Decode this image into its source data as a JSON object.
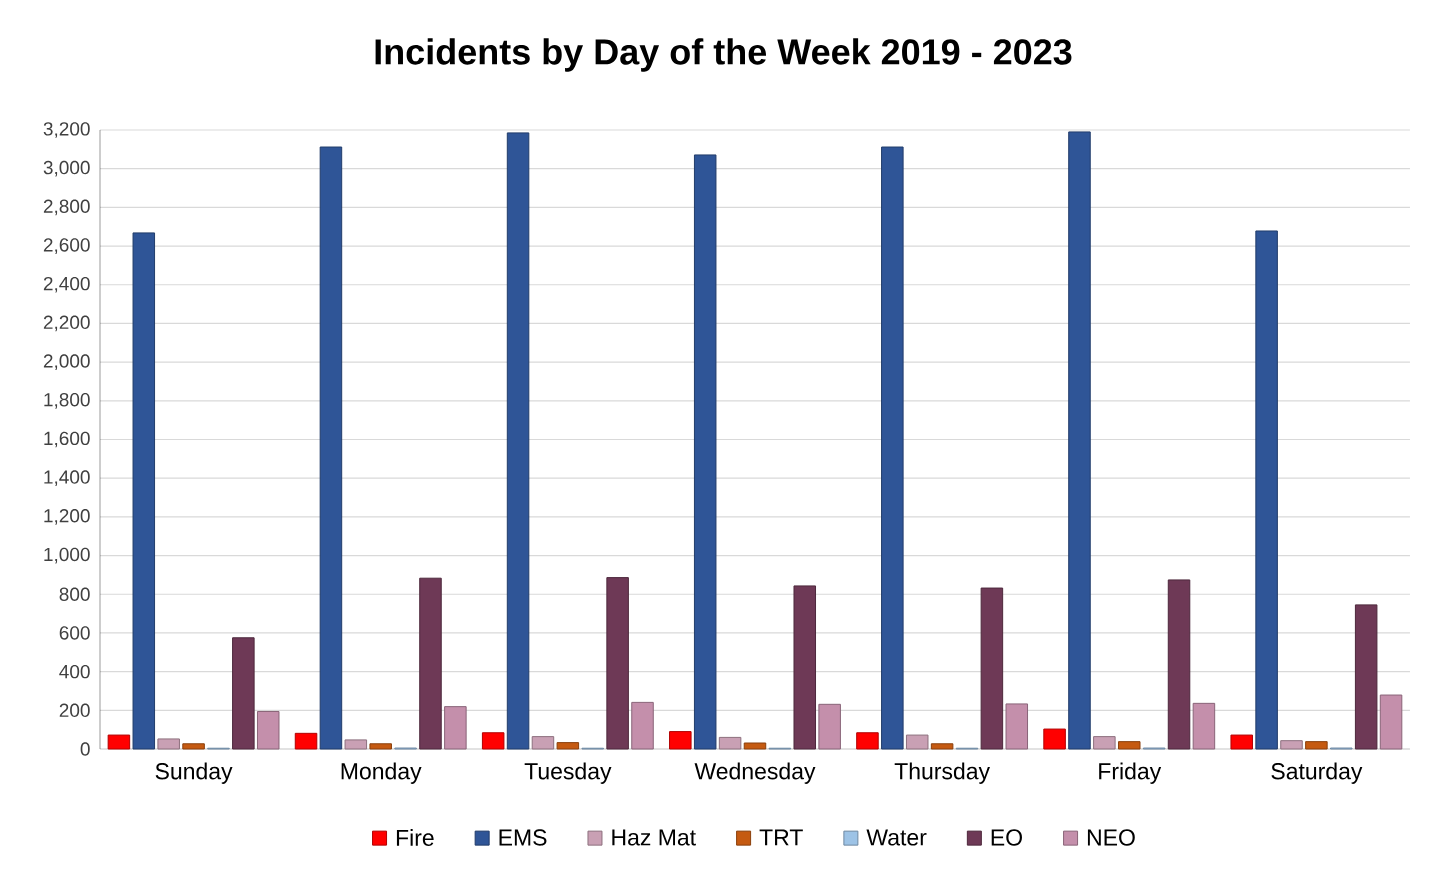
{
  "chart_data": {
    "type": "bar",
    "title": "Incidents by Day of the Week 2019 - 2023",
    "categories": [
      "Sunday",
      "Monday",
      "Tuesday",
      "Wednesday",
      "Thursday",
      "Friday",
      "Saturday"
    ],
    "series": [
      {
        "name": "Fire",
        "color": "#ff0000",
        "values": [
          72,
          81,
          84,
          90,
          84,
          103,
          72
        ]
      },
      {
        "name": "EMS",
        "color": "#2f5597",
        "values": [
          2668,
          3112,
          3185,
          3071,
          3112,
          3190,
          2678
        ]
      },
      {
        "name": "Haz Mat",
        "color": "#c9a0b4",
        "values": [
          52,
          47,
          64,
          60,
          72,
          64,
          43
        ]
      },
      {
        "name": "TRT",
        "color": "#c55a11",
        "values": [
          27,
          27,
          33,
          31,
          27,
          38,
          38
        ]
      },
      {
        "name": "Water",
        "color": "#9dc3e6",
        "values": [
          4,
          5,
          4,
          4,
          4,
          5,
          5
        ]
      },
      {
        "name": "EO",
        "color": "#6e3956",
        "values": [
          575,
          883,
          886,
          843,
          832,
          874,
          745
        ]
      },
      {
        "name": "NEO",
        "color": "#c48fab",
        "values": [
          194,
          219,
          241,
          231,
          233,
          236,
          279
        ]
      }
    ],
    "ylim": [
      0,
      3200
    ],
    "yticks": [
      0,
      200,
      400,
      600,
      800,
      {
        "value": 1000,
        "label": "1,000"
      },
      {
        "value": 1200,
        "label": "1,200"
      },
      {
        "value": 1400,
        "label": "1,400"
      },
      {
        "value": 1600,
        "label": "1,600"
      },
      {
        "value": 1800,
        "label": "1,800"
      },
      {
        "value": 2000,
        "label": "2,000"
      },
      {
        "value": 2200,
        "label": "2,200"
      },
      {
        "value": 2400,
        "label": "2,400"
      },
      {
        "value": 2600,
        "label": "2,600"
      },
      {
        "value": 2800,
        "label": "2,800"
      },
      {
        "value": 3000,
        "label": "3,000"
      },
      {
        "value": 3200,
        "label": "3,200"
      }
    ],
    "grid": "y",
    "legend": "bottom"
  }
}
